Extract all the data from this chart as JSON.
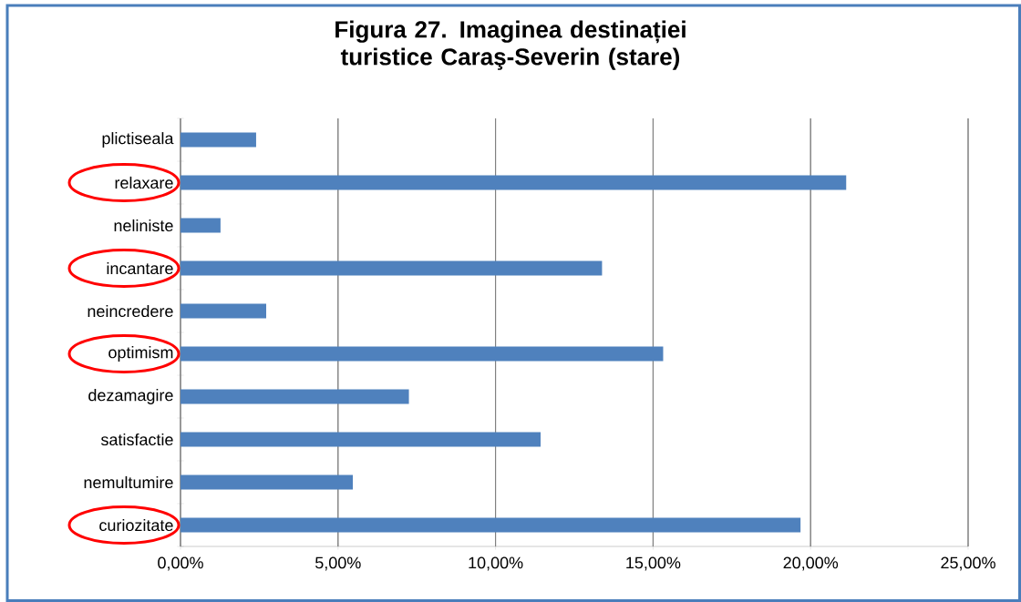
{
  "chart_data": {
    "type": "bar",
    "orientation": "horizontal",
    "title": "Figura 27. Imaginea destinației turistice Caraş-Severin (stare)",
    "categories": [
      "plictiseala",
      "relaxare",
      "neliniste",
      "incantare",
      "neincredere",
      "optimism",
      "dezamagire",
      "satisfactie",
      "nemultumire",
      "curiozitate"
    ],
    "values": [
      2.4,
      21.13,
      1.27,
      13.38,
      2.72,
      15.32,
      7.25,
      11.43,
      5.47,
      19.68
    ],
    "color": "#4f81bd",
    "xlim": [
      0,
      25
    ],
    "xticks": [
      {
        "value": 0,
        "label": "0,00%"
      },
      {
        "value": 5,
        "label": "5,00%"
      },
      {
        "value": 10,
        "label": "10,00%"
      },
      {
        "value": 15,
        "label": "15,00%"
      },
      {
        "value": 20,
        "label": "20,00%"
      },
      {
        "value": 25,
        "label": "25,00%"
      }
    ],
    "grid": "x"
  }
}
